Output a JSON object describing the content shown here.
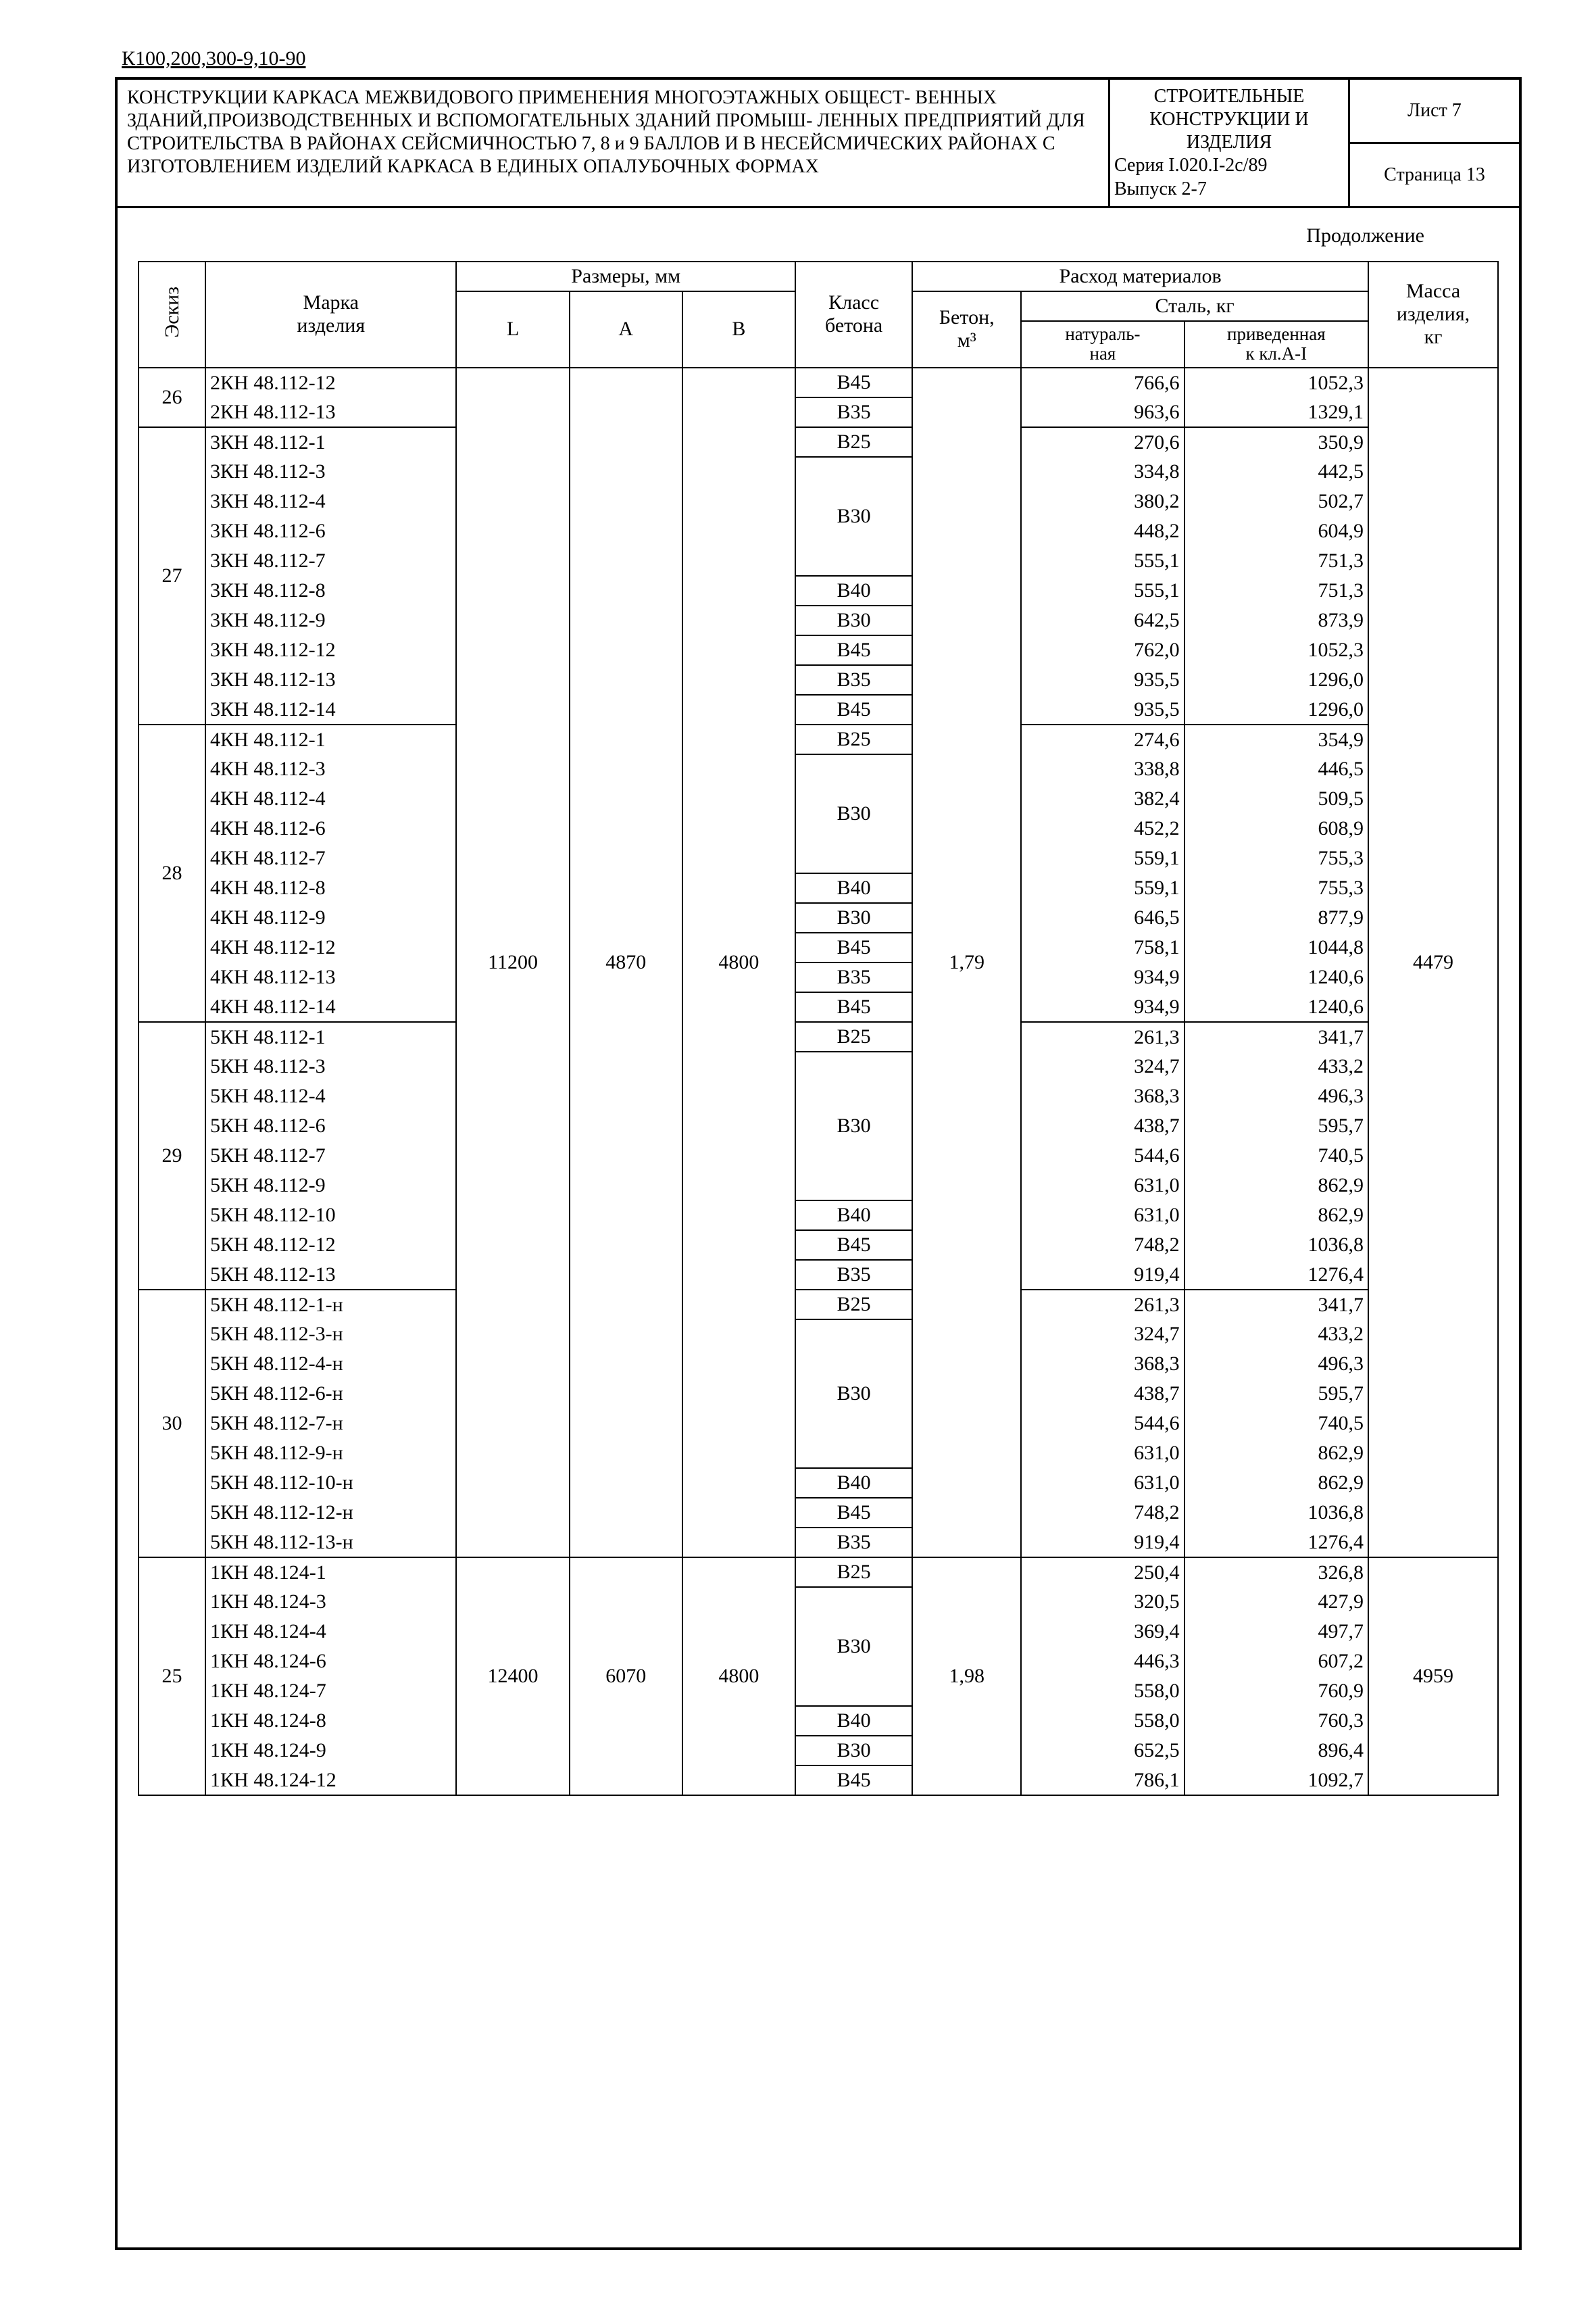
{
  "top_code": "К100,200,300-9,10-90",
  "header": {
    "left": "КОНСТРУКЦИИ КАРКАСА МЕЖВИДОВОГО ПРИМЕНЕНИЯ МНОГОЭТАЖНЫХ ОБЩЕСТ- ВЕННЫХ ЗДАНИЙ,ПРОИЗВОДСТВЕННЫХ И ВСПОМОГАТЕЛЬНЫХ ЗДАНИЙ ПРОМЫШ- ЛЕННЫХ ПРЕДПРИЯТИЙ ДЛЯ СТРОИТЕЛЬСТВА В РАЙОНАХ СЕЙСМИЧНОСТЬЮ 7, 8 и 9 БАЛЛОВ И В НЕСЕЙСМИЧЕСКИХ РАЙОНАХ С ИЗГОТОВЛЕНИЕМ ИЗДЕЛИЙ КАРКАСА В ЕДИНЫХ ОПАЛУБОЧНЫХ ФОРМАХ",
    "mid_l1": "СТРОИТЕЛЬНЫЕ",
    "mid_l2": "КОНСТРУКЦИИ И",
    "mid_l3": "ИЗДЕЛИЯ",
    "mid_l4": "Серия I.020.I-2с/89",
    "mid_l5": "Выпуск 2-7",
    "right_top": "Лист 7",
    "right_bot": "Страница 13"
  },
  "continuation": "Продолжение",
  "headers": {
    "eskiz": "Эскиз",
    "marka1": "Марка",
    "marka2": "изделия",
    "razmery": "Размеры, мм",
    "L": "L",
    "A": "A",
    "B": "B",
    "klass1": "Класс",
    "klass2": "бетона",
    "rashod": "Расход материалов",
    "beton": "Бетон, м³",
    "steel": "Сталь, кг",
    "nat": "натураль- ная",
    "priv": "приведенная к кл.А-I",
    "massa1": "Масса",
    "massa2": "изделия,",
    "massa3": "кг"
  },
  "shared": {
    "L": "11200",
    "A": "4870",
    "B": "4800",
    "beton": "1,79",
    "massa": "4479",
    "L2": "12400",
    "A2": "6070",
    "B2": "4800",
    "beton2": "1,98",
    "massa2": "4959"
  },
  "groups": [
    {
      "eskiz": "26",
      "rows": [
        {
          "marka": "2КН 48.112-12",
          "klass": "В45",
          "nat": "766,6",
          "priv": "1052,3"
        },
        {
          "marka": "2КН 48.112-13",
          "klass": "В35",
          "nat": "963,6",
          "priv": "1329,1"
        }
      ]
    },
    {
      "eskiz": "27",
      "rows": [
        {
          "marka": "3КН 48.112-1",
          "klass": "В25",
          "nat": "270,6",
          "priv": "350,9"
        },
        {
          "marka": "3КН 48.112-3",
          "klass": "",
          "klass_top": "В30",
          "klass_span": 4,
          "nat": "334,8",
          "priv": "442,5"
        },
        {
          "marka": "3КН 48.112-4",
          "klass": "",
          "nat": "380,2",
          "priv": "502,7"
        },
        {
          "marka": "3КН 48.112-6",
          "klass": "",
          "nat": "448,2",
          "priv": "604,9"
        },
        {
          "marka": "3КН 48.112-7",
          "klass": "",
          "nat": "555,1",
          "priv": "751,3"
        },
        {
          "marka": "3КН 48.112-8",
          "klass": "В40",
          "nat": "555,1",
          "priv": "751,3"
        },
        {
          "marka": "3КН 48.112-9",
          "klass": "В30",
          "nat": "642,5",
          "priv": "873,9"
        },
        {
          "marka": "3КН 48.112-12",
          "klass": "В45",
          "nat": "762,0",
          "priv": "1052,3"
        },
        {
          "marka": "3КН 48.112-13",
          "klass": "В35",
          "nat": "935,5",
          "priv": "1296,0"
        },
        {
          "marka": "3КН 48.112-14",
          "klass": "В45",
          "nat": "935,5",
          "priv": "1296,0"
        }
      ]
    },
    {
      "eskiz": "28",
      "rows": [
        {
          "marka": "4КН 48.112-1",
          "klass": "В25",
          "nat": "274,6",
          "priv": "354,9"
        },
        {
          "marka": "4КН 48.112-3",
          "klass": "",
          "klass_top": "В30",
          "klass_span": 4,
          "nat": "338,8",
          "priv": "446,5"
        },
        {
          "marka": "4КН 48.112-4",
          "klass": "",
          "nat": "382,4",
          "priv": "509,5"
        },
        {
          "marka": "4КН 48.112-6",
          "klass": "",
          "nat": "452,2",
          "priv": "608,9"
        },
        {
          "marka": "4КН 48.112-7",
          "klass": "",
          "nat": "559,1",
          "priv": "755,3"
        },
        {
          "marka": "4КН 48.112-8",
          "klass": "В40",
          "nat": "559,1",
          "priv": "755,3"
        },
        {
          "marka": "4КН 48.112-9",
          "klass": "В30",
          "nat": "646,5",
          "priv": "877,9"
        },
        {
          "marka": "4КН 48.112-12",
          "klass": "В45",
          "nat": "758,1",
          "priv": "1044,8"
        },
        {
          "marka": "4КН 48.112-13",
          "klass": "В35",
          "nat": "934,9",
          "priv": "1240,6"
        },
        {
          "marka": "4КН 48.112-14",
          "klass": "В45",
          "nat": "934,9",
          "priv": "1240,6"
        }
      ]
    },
    {
      "eskiz": "29",
      "rows": [
        {
          "marka": "5КН 48.112-1",
          "klass": "В25",
          "nat": "261,3",
          "priv": "341,7"
        },
        {
          "marka": "5КН 48.112-3",
          "klass": "",
          "klass_top": "В30",
          "klass_span": 5,
          "nat": "324,7",
          "priv": "433,2"
        },
        {
          "marka": "5КН 48.112-4",
          "klass": "",
          "nat": "368,3",
          "priv": "496,3"
        },
        {
          "marka": "5КН 48.112-6",
          "klass": "",
          "nat": "438,7",
          "priv": "595,7"
        },
        {
          "marka": "5КН 48.112-7",
          "klass": "",
          "nat": "544,6",
          "priv": "740,5"
        },
        {
          "marka": "5КН 48.112-9",
          "klass": "",
          "nat": "631,0",
          "priv": "862,9"
        },
        {
          "marka": "5КН 48.112-10",
          "klass": "В40",
          "nat": "631,0",
          "priv": "862,9"
        },
        {
          "marka": "5КН 48.112-12",
          "klass": "В45",
          "nat": "748,2",
          "priv": "1036,8"
        },
        {
          "marka": "5КН 48.112-13",
          "klass": "В35",
          "nat": "919,4",
          "priv": "1276,4"
        }
      ]
    },
    {
      "eskiz": "30",
      "rows": [
        {
          "marka": "5КН 48.112-1-н",
          "klass": "В25",
          "nat": "261,3",
          "priv": "341,7"
        },
        {
          "marka": "5КН 48.112-3-н",
          "klass": "",
          "klass_top": "В30",
          "klass_span": 5,
          "nat": "324,7",
          "priv": "433,2"
        },
        {
          "marka": "5КН 48.112-4-н",
          "klass": "",
          "nat": "368,3",
          "priv": "496,3"
        },
        {
          "marka": "5КН 48.112-6-н",
          "klass": "",
          "nat": "438,7",
          "priv": "595,7"
        },
        {
          "marka": "5КН 48.112-7-н",
          "klass": "",
          "nat": "544,6",
          "priv": "740,5"
        },
        {
          "marka": "5КН 48.112-9-н",
          "klass": "",
          "nat": "631,0",
          "priv": "862,9"
        },
        {
          "marka": "5КН 48.112-10-н",
          "klass": "В40",
          "nat": "631,0",
          "priv": "862,9"
        },
        {
          "marka": "5КН 48.112-12-н",
          "klass": "В45",
          "nat": "748,2",
          "priv": "1036,8"
        },
        {
          "marka": "5КН 48.112-13-н",
          "klass": "В35",
          "nat": "919,4",
          "priv": "1276,4"
        }
      ]
    },
    {
      "eskiz": "25",
      "rows": [
        {
          "marka": "1КН 48.124-1",
          "klass": "В25",
          "nat": "250,4",
          "priv": "326,8"
        },
        {
          "marka": "1КН 48.124-3",
          "klass": "",
          "klass_top": "В30",
          "klass_span": 4,
          "nat": "320,5",
          "priv": "427,9"
        },
        {
          "marka": "1КН 48.124-4",
          "klass": "",
          "nat": "369,4",
          "priv": "497,7"
        },
        {
          "marka": "1КН 48.124-6",
          "klass": "",
          "nat": "446,3",
          "priv": "607,2"
        },
        {
          "marka": "1КН 48.124-7",
          "klass": "",
          "nat": "558,0",
          "priv": "760,9"
        },
        {
          "marka": "1КН 48.124-8",
          "klass": "В40",
          "nat": "558,0",
          "priv": "760,3"
        },
        {
          "marka": "1КН 48.124-9",
          "klass": "В30",
          "nat": "652,5",
          "priv": "896,4"
        },
        {
          "marka": "1КН 48.124-12",
          "klass": "В45",
          "nat": "786,1",
          "priv": "1092,7"
        }
      ]
    }
  ]
}
